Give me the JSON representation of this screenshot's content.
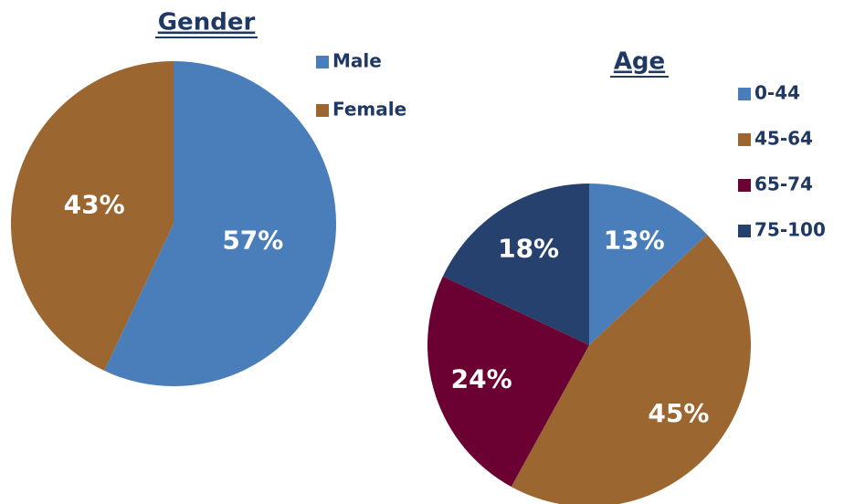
{
  "chart_data": [
    {
      "type": "pie",
      "title": "Gender",
      "categories": [
        "Male",
        "Female"
      ],
      "values": [
        57,
        43
      ],
      "value_labels": [
        "57%",
        "43%"
      ],
      "colors": [
        "#4a7ebb",
        "#9c6630"
      ]
    },
    {
      "type": "pie",
      "title": "Age",
      "categories": [
        "0-44",
        "45-64",
        "65-74",
        "75-100"
      ],
      "values": [
        13,
        45,
        24,
        18
      ],
      "value_labels": [
        "13%",
        "45%",
        "24%",
        "18%"
      ],
      "colors": [
        "#4a7ebb",
        "#9c6630",
        "#6b0032",
        "#27416e"
      ]
    }
  ]
}
